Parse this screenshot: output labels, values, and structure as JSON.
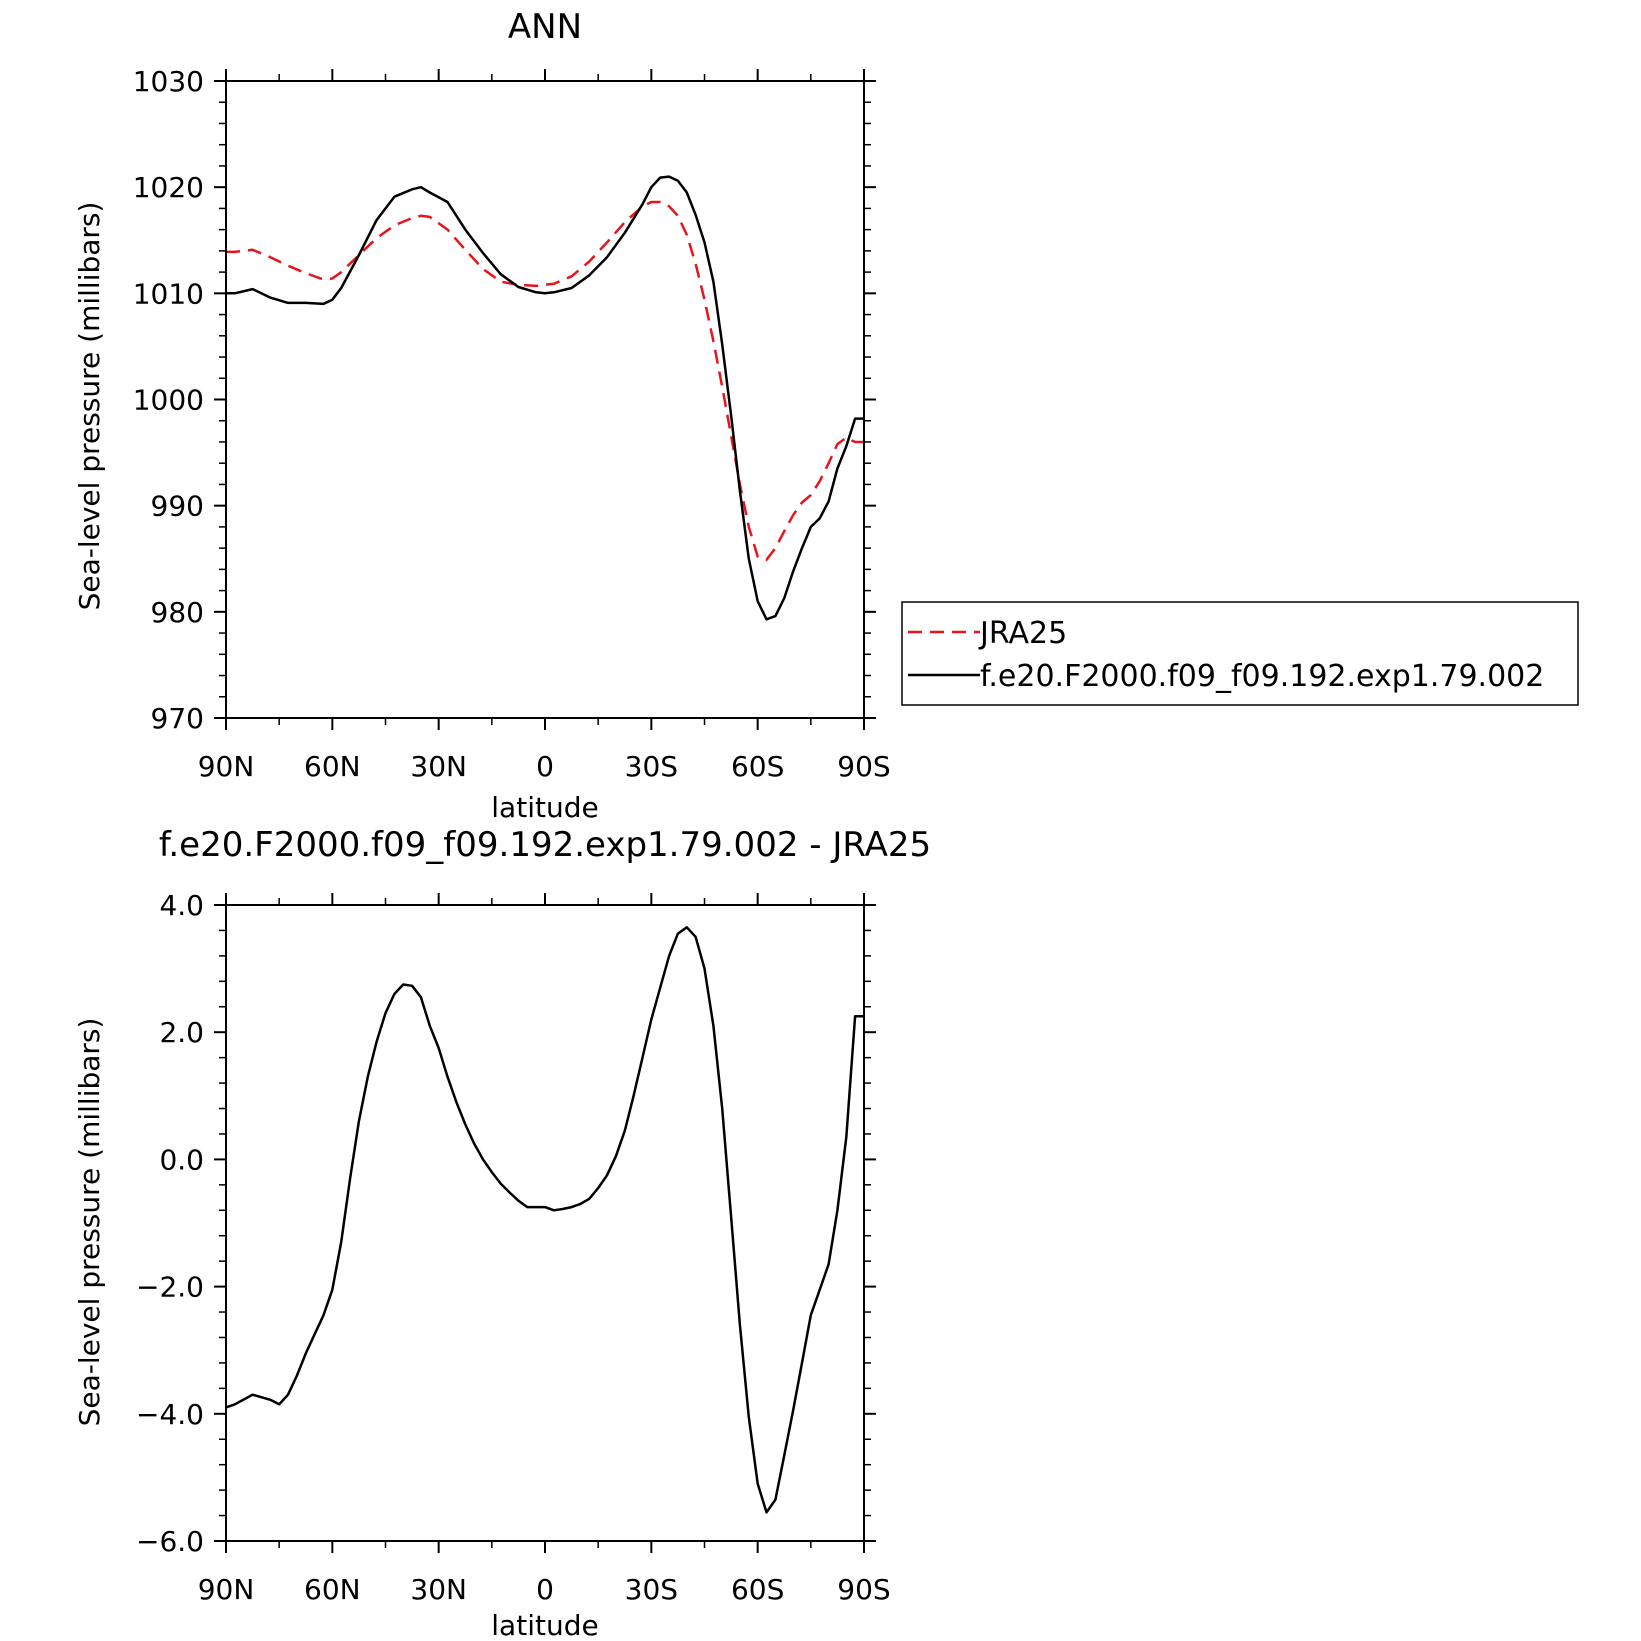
{
  "chart_data": [
    {
      "type": "line",
      "title": "ANN",
      "xlabel": "latitude",
      "ylabel": "Sea-level pressure (millibars)",
      "xlim": [
        90,
        -90
      ],
      "ylim": [
        970,
        1030
      ],
      "x_ticks": [
        {
          "value": 90,
          "label": "90N"
        },
        {
          "value": 60,
          "label": "60N"
        },
        {
          "value": 30,
          "label": "30N"
        },
        {
          "value": 0,
          "label": "0"
        },
        {
          "value": -30,
          "label": "30S"
        },
        {
          "value": -60,
          "label": "60S"
        },
        {
          "value": -90,
          "label": "90S"
        }
      ],
      "y_ticks": [
        {
          "value": 1030,
          "label": "1030"
        },
        {
          "value": 1020,
          "label": "1020"
        },
        {
          "value": 1010,
          "label": "1010"
        },
        {
          "value": 1000,
          "label": "1000"
        },
        {
          "value": 990,
          "label": "990"
        },
        {
          "value": 980,
          "label": "980"
        },
        {
          "value": 970,
          "label": "970"
        }
      ],
      "legend": "right",
      "series": [
        {
          "name": "JRA25",
          "color": "#e8141c",
          "dash": true,
          "x": [
            90,
            87.5,
            82.5,
            77.5,
            72.5,
            67.5,
            62.5,
            60,
            57.5,
            52.5,
            47.5,
            42.5,
            37.5,
            35,
            32.5,
            27.5,
            22.5,
            17.5,
            12.5,
            7.5,
            2.5,
            0,
            -2.5,
            -7.5,
            -12.5,
            -17.5,
            -22.5,
            -27.5,
            -30,
            -32.5,
            -35,
            -37.5,
            -40,
            -42.5,
            -45,
            -47.5,
            -50,
            -52.5,
            -55,
            -57.5,
            -60,
            -62.5,
            -65,
            -67.5,
            -70,
            -72.5,
            -75,
            -77.5,
            -80,
            -82.5,
            -85,
            -87.5,
            -90
          ],
          "y": [
            1013.9,
            1013.9,
            1014.1,
            1013.4,
            1012.6,
            1011.9,
            1011.3,
            1011.4,
            1012.0,
            1013.6,
            1015.2,
            1016.4,
            1017.1,
            1017.3,
            1017.2,
            1016.0,
            1014.1,
            1012.3,
            1011.1,
            1010.8,
            1010.7,
            1010.8,
            1010.9,
            1011.6,
            1013.0,
            1014.8,
            1016.7,
            1018.2,
            1018.6,
            1018.6,
            1018.2,
            1017.3,
            1015.5,
            1012.8,
            1009.4,
            1005.5,
            1001.2,
            996.6,
            992.0,
            988.0,
            985.2,
            984.9,
            986.0,
            987.6,
            989.1,
            990.3,
            991.0,
            992.3,
            994.0,
            995.8,
            996.4,
            996.0,
            996.0
          ]
        },
        {
          "name": "f.e20.F2000.f09_f09.192.exp1.79.002",
          "color": "#000000",
          "dash": false,
          "x": [
            90,
            87.5,
            82.5,
            77.5,
            72.5,
            67.5,
            62.5,
            60,
            57.5,
            52.5,
            47.5,
            42.5,
            37.5,
            35,
            32.5,
            27.5,
            22.5,
            17.5,
            12.5,
            7.5,
            2.5,
            0,
            -2.5,
            -7.5,
            -12.5,
            -17.5,
            -22.5,
            -27.5,
            -30,
            -32.5,
            -35,
            -37.5,
            -40,
            -42.5,
            -45,
            -47.5,
            -50,
            -52.5,
            -55,
            -57.5,
            -60,
            -62.5,
            -65,
            -67.5,
            -70,
            -72.5,
            -75,
            -77.5,
            -80,
            -82.5,
            -85,
            -87.5,
            -90
          ],
          "y": [
            1010.0,
            1010.0,
            1010.4,
            1009.6,
            1009.1,
            1009.1,
            1009.0,
            1009.4,
            1010.5,
            1013.6,
            1016.9,
            1019.1,
            1019.8,
            1020.0,
            1019.5,
            1018.6,
            1016.0,
            1013.8,
            1011.8,
            1010.6,
            1010.1,
            1010.0,
            1010.1,
            1010.5,
            1011.7,
            1013.4,
            1015.7,
            1018.4,
            1020.0,
            1020.9,
            1021.0,
            1020.6,
            1019.5,
            1017.4,
            1014.8,
            1011.1,
            1005.2,
            998.5,
            991.4,
            985.0,
            981.0,
            979.3,
            979.6,
            981.3,
            983.8,
            986.0,
            988.0,
            988.8,
            990.4,
            993.5,
            995.6,
            998.2,
            998.2
          ]
        }
      ]
    },
    {
      "type": "line",
      "title": "f.e20.F2000.f09_f09.192.exp1.79.002 - JRA25",
      "xlabel": "latitude",
      "ylabel": "Sea-level pressure (millibars)",
      "xlim": [
        90,
        -90
      ],
      "ylim": [
        -6.0,
        4.0
      ],
      "x_ticks": [
        {
          "value": 90,
          "label": "90N"
        },
        {
          "value": 60,
          "label": "60N"
        },
        {
          "value": 30,
          "label": "30N"
        },
        {
          "value": 0,
          "label": "0"
        },
        {
          "value": -30,
          "label": "30S"
        },
        {
          "value": -60,
          "label": "60S"
        },
        {
          "value": -90,
          "label": "90S"
        }
      ],
      "y_ticks": [
        {
          "value": 4.0,
          "label": "4.0"
        },
        {
          "value": 2.0,
          "label": "2.0"
        },
        {
          "value": 0.0,
          "label": "0.0"
        },
        {
          "value": -2.0,
          "label": "−2.0"
        },
        {
          "value": -4.0,
          "label": "−4.0"
        },
        {
          "value": -6.0,
          "label": "−6.0"
        }
      ],
      "series": [
        {
          "color": "#000000",
          "dash": false,
          "x": [
            90,
            87.5,
            82.5,
            77.5,
            75,
            72.5,
            70,
            67.5,
            65,
            62.5,
            60,
            57.5,
            55,
            52.5,
            50,
            47.5,
            45,
            42.5,
            40,
            37.5,
            35,
            32.5,
            30,
            27.5,
            25,
            22.5,
            20,
            17.5,
            15,
            12.5,
            10,
            7.5,
            5,
            2.5,
            0,
            -2.5,
            -5,
            -7.5,
            -10,
            -12.5,
            -15,
            -17.5,
            -20,
            -22.5,
            -25,
            -27.5,
            -30,
            -32.5,
            -35,
            -37.5,
            -40,
            -42.5,
            -45,
            -47.5,
            -50,
            -52.5,
            -55,
            -57.5,
            -60,
            -62.5,
            -65,
            -67.5,
            -70,
            -72.5,
            -75,
            -77.5,
            -80,
            -82.5,
            -85,
            -87.5,
            -90
          ],
          "y": [
            -3.9,
            -3.85,
            -3.7,
            -3.78,
            -3.85,
            -3.7,
            -3.4,
            -3.05,
            -2.75,
            -2.45,
            -2.05,
            -1.3,
            -0.3,
            0.6,
            1.3,
            1.85,
            2.3,
            2.6,
            2.75,
            2.73,
            2.55,
            2.1,
            1.75,
            1.3,
            0.9,
            0.55,
            0.25,
            0.0,
            -0.2,
            -0.38,
            -0.52,
            -0.65,
            -0.75,
            -0.75,
            -0.75,
            -0.8,
            -0.78,
            -0.75,
            -0.7,
            -0.62,
            -0.45,
            -0.25,
            0.05,
            0.45,
            1.0,
            1.6,
            2.2,
            2.7,
            3.2,
            3.55,
            3.65,
            3.5,
            3.0,
            2.1,
            0.8,
            -0.9,
            -2.6,
            -4.05,
            -5.1,
            -5.55,
            -5.35,
            -4.65,
            -3.95,
            -3.2,
            -2.45,
            -2.05,
            -1.65,
            -0.8,
            0.35,
            2.25,
            2.25
          ]
        }
      ]
    }
  ],
  "legend": {
    "entries": [
      {
        "label": "JRA25",
        "color": "#e8141c",
        "dash": true
      },
      {
        "label": "f.e20.F2000.f09_f09.192.exp1.79.002",
        "color": "#000000",
        "dash": false
      }
    ]
  }
}
